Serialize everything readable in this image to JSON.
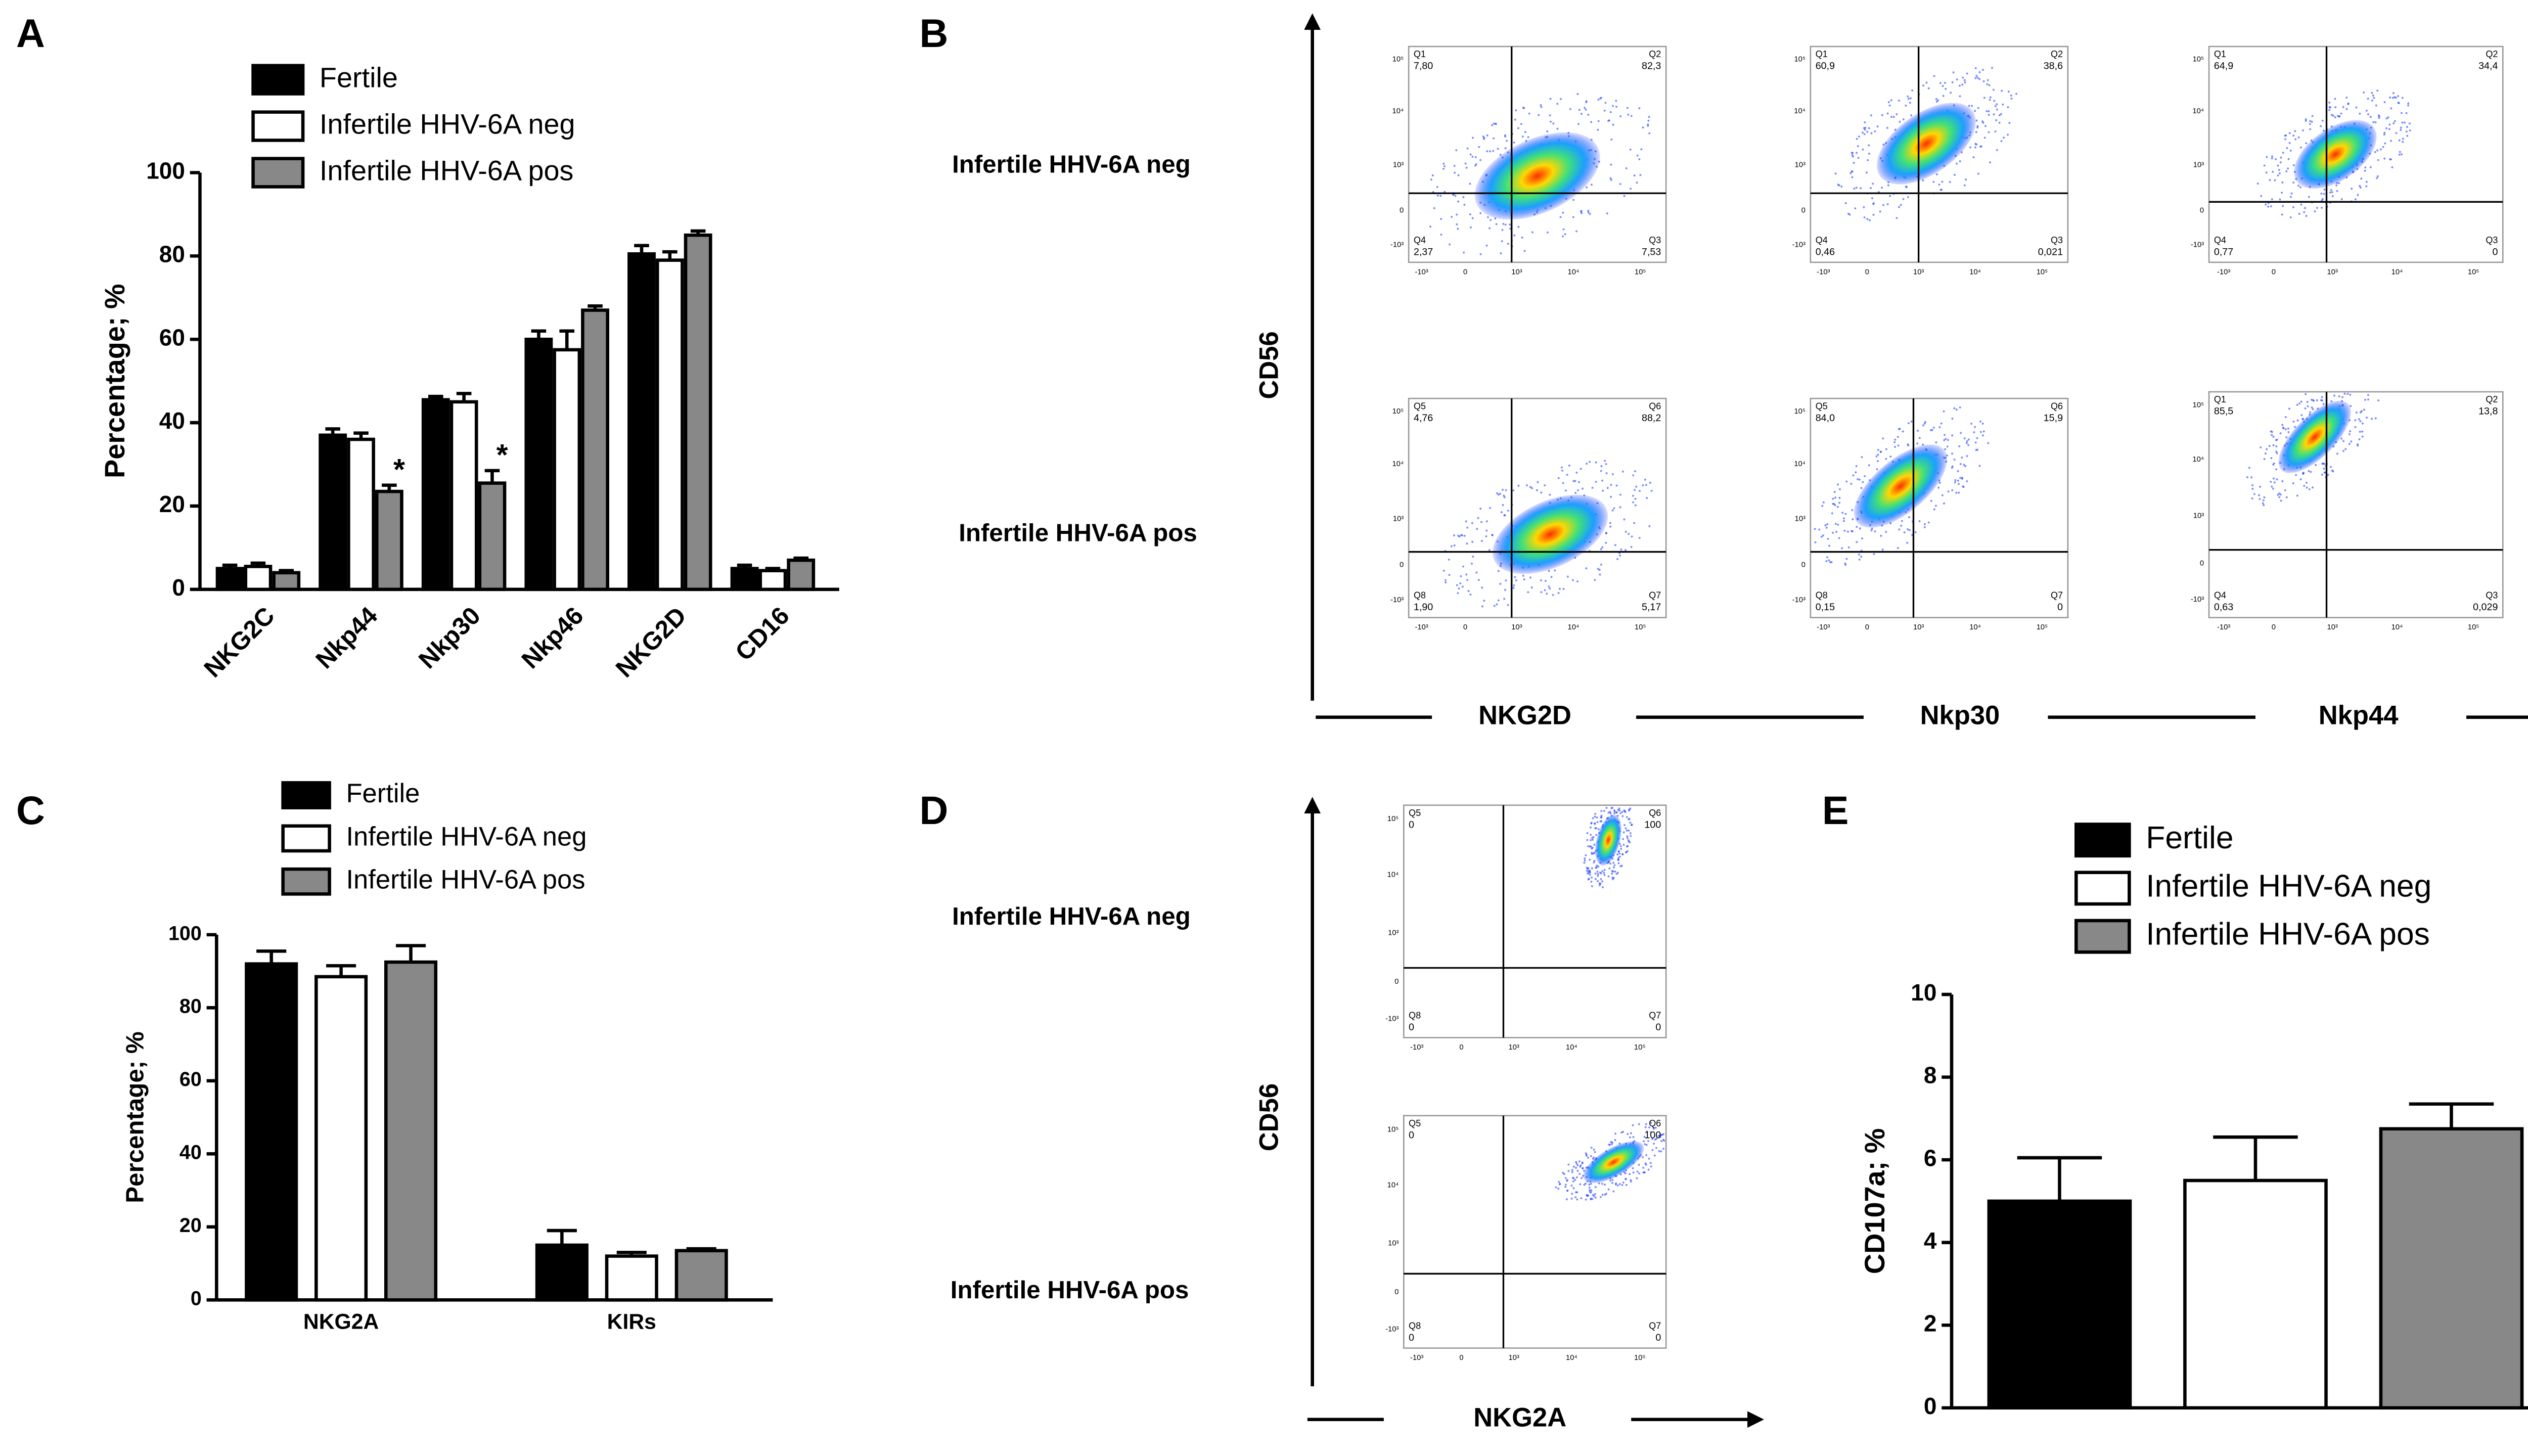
{
  "panel_labels": [
    "A",
    "B",
    "C",
    "D",
    "E"
  ],
  "chart_data": [
    {
      "type": "bar",
      "ylabel": "Percentage; %",
      "categories": [
        "NKG2C",
        "Nkp44",
        "Nkp30",
        "Nkp46",
        "NKG2D",
        "CD16"
      ],
      "series": [
        {
          "name": "Fertile",
          "color": "#000000",
          "values": [
            5,
            37,
            45.5,
            60,
            80.5,
            5
          ],
          "errors": [
            0.8,
            1.5,
            0.8,
            2,
            2,
            0.8
          ]
        },
        {
          "name": "Infertile HHV-6A neg",
          "color": "#ffffff",
          "values": [
            5.5,
            36,
            45,
            57.5,
            79,
            4.5
          ],
          "errors": [
            0.8,
            1.5,
            2,
            4.5,
            2,
            0.5
          ]
        },
        {
          "name": "Infertile HHV-6A pos",
          "color": "#888888",
          "values": [
            4,
            23.5,
            25.5,
            67,
            85,
            7
          ],
          "errors": [
            0.5,
            1.5,
            3,
            1,
            1,
            0.5
          ],
          "annotations": [
            null,
            "*",
            "*",
            null,
            null,
            null
          ]
        }
      ],
      "ylim": [
        0,
        100
      ],
      "yticks": [
        0,
        20,
        40,
        60,
        80,
        100
      ],
      "grid": false
    },
    {
      "type": "bar",
      "ylabel": "Percentage; %",
      "categories": [
        "NKG2A",
        "KIRs"
      ],
      "series": [
        {
          "name": "Fertile",
          "color": "#000000",
          "values": [
            92,
            15
          ],
          "errors": [
            3.5,
            4
          ]
        },
        {
          "name": "Infertile HHV-6A neg",
          "color": "#ffffff",
          "values": [
            88.5,
            12
          ],
          "errors": [
            3,
            1
          ]
        },
        {
          "name": "Infertile HHV-6A pos",
          "color": "#888888",
          "values": [
            92.5,
            13.5
          ],
          "errors": [
            4.5,
            0.5
          ]
        }
      ],
      "ylim": [
        0,
        100
      ],
      "yticks": [
        0,
        20,
        40,
        60,
        80,
        100
      ],
      "grid": false
    },
    {
      "type": "bar",
      "ylabel": "CD107a; %",
      "categories": [
        null
      ],
      "series": [
        {
          "name": "Fertile",
          "color": "#000000",
          "values": [
            5
          ],
          "errors": [
            1.05
          ]
        },
        {
          "name": "Infertile HHV-6A neg",
          "color": "#ffffff",
          "values": [
            5.5
          ],
          "errors": [
            1.05
          ]
        },
        {
          "name": "Infertile HHV-6A pos",
          "color": "#888888",
          "values": [
            6.75
          ],
          "errors": [
            0.6
          ]
        }
      ],
      "ylim": [
        0,
        10
      ],
      "yticks": [
        0,
        2,
        4,
        6,
        8,
        10
      ],
      "grid": false
    }
  ],
  "flow_ticks": {
    "y": [
      "10⁵",
      "10⁴",
      "10³",
      "0",
      "-10³"
    ],
    "x": [
      "-10³",
      "0",
      "10³",
      "10⁴",
      "10⁵"
    ]
  },
  "flow": [
    {
      "y_label": "CD56",
      "x_labels": [
        "NKG2D",
        "Nkp30",
        "Nkp44"
      ],
      "rows": [
        {
          "label": "Infertile HHV-6A  neg",
          "plots": [
            {
              "quadrants": [
                {
                  "name": "Q1",
                  "value": "7,80"
                },
                {
                  "name": "Q2",
                  "value": "82,3"
                },
                {
                  "name": "Q3",
                  "value": "7,53"
                },
                {
                  "name": "Q4",
                  "value": "2,37"
                }
              ]
            },
            {
              "quadrants": [
                {
                  "name": "Q1",
                  "value": "60,9"
                },
                {
                  "name": "Q2",
                  "value": "38,6"
                },
                {
                  "name": "Q3",
                  "value": "0,021"
                },
                {
                  "name": "Q4",
                  "value": "0,46"
                }
              ]
            },
            {
              "quadrants": [
                {
                  "name": "Q1",
                  "value": "64,9"
                },
                {
                  "name": "Q2",
                  "value": "34,4"
                },
                {
                  "name": "Q3",
                  "value": "0"
                },
                {
                  "name": "Q4",
                  "value": "0,77"
                }
              ]
            }
          ]
        },
        {
          "label": "Infertile HHV-6A pos",
          "plots": [
            {
              "quadrants": [
                {
                  "name": "Q5",
                  "value": "4,76"
                },
                {
                  "name": "Q6",
                  "value": "88,2"
                },
                {
                  "name": "Q7",
                  "value": "5,17"
                },
                {
                  "name": "Q8",
                  "value": "1,90"
                }
              ]
            },
            {
              "quadrants": [
                {
                  "name": "Q5",
                  "value": "84,0"
                },
                {
                  "name": "Q6",
                  "value": "15,9"
                },
                {
                  "name": "Q7",
                  "value": "0"
                },
                {
                  "name": "Q8",
                  "value": "0,15"
                }
              ]
            },
            {
              "quadrants": [
                {
                  "name": "Q1",
                  "value": "85,5"
                },
                {
                  "name": "Q2",
                  "value": "13,8"
                },
                {
                  "name": "Q3",
                  "value": "0,029"
                },
                {
                  "name": "Q4",
                  "value": "0,63"
                }
              ]
            }
          ]
        }
      ]
    },
    {
      "y_label": "CD56",
      "x_labels": [
        "NKG2A"
      ],
      "rows": [
        {
          "label": "Infertile HHV-6A  neg",
          "plots": [
            {
              "quadrants": [
                {
                  "name": "Q5",
                  "value": "0"
                },
                {
                  "name": "Q6",
                  "value": "100"
                },
                {
                  "name": "Q7",
                  "value": "0"
                },
                {
                  "name": "Q8",
                  "value": "0"
                }
              ]
            }
          ]
        },
        {
          "label": "Infertile HHV-6A pos",
          "plots": [
            {
              "quadrants": [
                {
                  "name": "Q5",
                  "value": "0"
                },
                {
                  "name": "Q6",
                  "value": "100"
                },
                {
                  "name": "Q7",
                  "value": "0"
                },
                {
                  "name": "Q8",
                  "value": "0"
                }
              ]
            }
          ]
        }
      ]
    }
  ]
}
